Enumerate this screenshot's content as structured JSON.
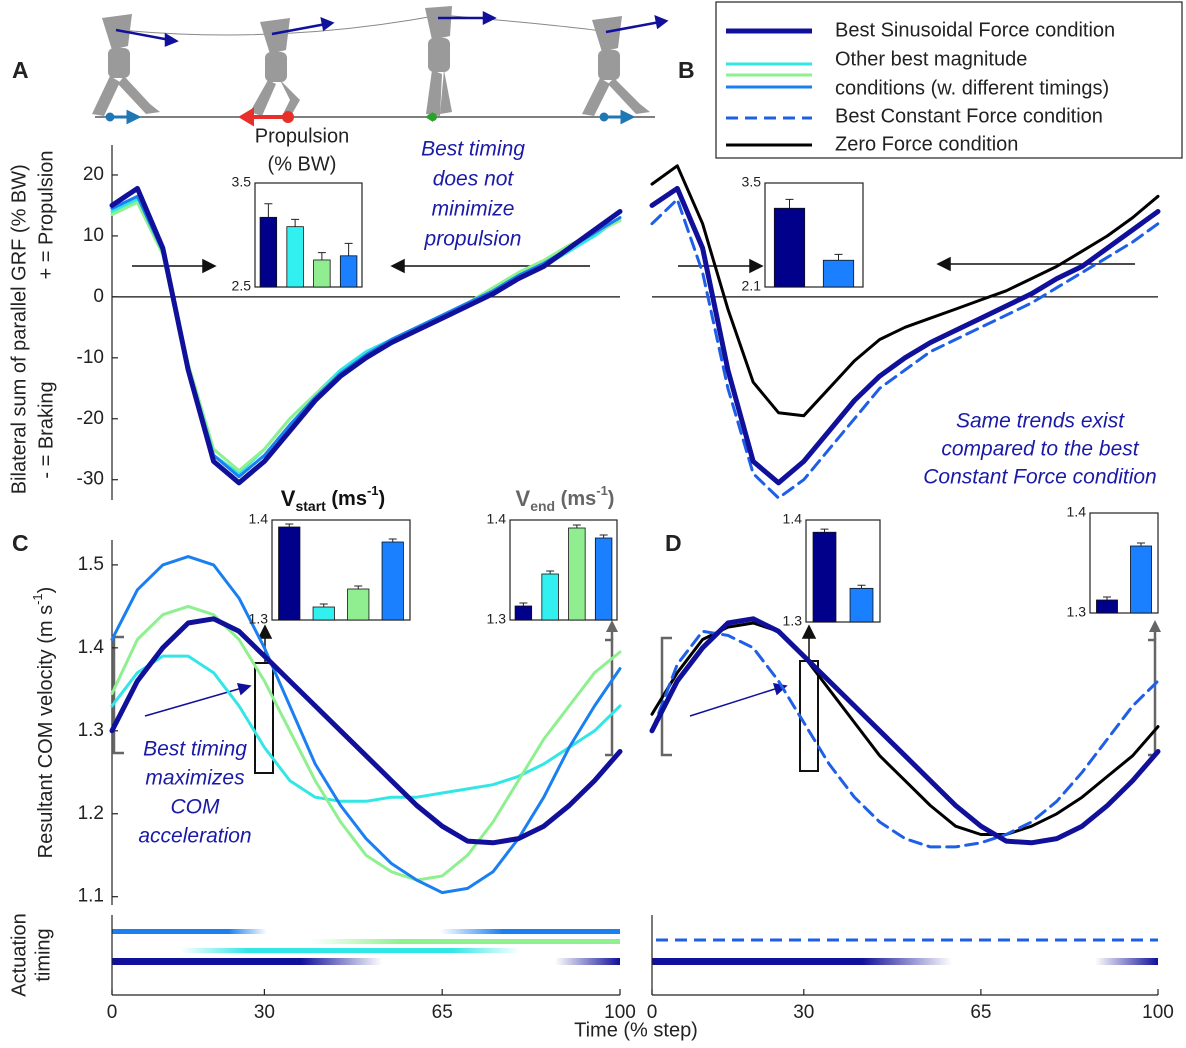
{
  "x_label": "Time (% step)",
  "timing_label": [
    "Actuation",
    "timing"
  ],
  "legend": [
    {
      "lines": [
        "Best Sinusoidal Force condition"
      ],
      "colors": [
        "#10109a"
      ],
      "dashed": false
    },
    {
      "lines": [
        "Other best magnitude",
        "conditions (w. different timings)"
      ],
      "colors": [
        "#33e6e6",
        "#8ef08e",
        "#1a7ff0"
      ],
      "dashed": false
    },
    {
      "lines": [
        "Best Constant Force condition"
      ],
      "colors": [
        "#1f5fe8"
      ],
      "dashed": true
    },
    {
      "lines": [
        "Zero Force condition"
      ],
      "colors": [
        "#000000"
      ],
      "dashed": false
    }
  ],
  "chart_data": [
    {
      "type": "line",
      "panel_label": "A",
      "ylabel": "Bilateral sum of parallel GRF (% BW)",
      "ylabel_sides": [
        "+ = Propulsion",
        "- = Braking"
      ],
      "xlim": [
        0,
        100
      ],
      "ylim": [
        -33,
        25
      ],
      "yticks": [
        -30,
        -20,
        -10,
        0,
        10,
        20
      ],
      "zero_line": true,
      "x": [
        0,
        5,
        10,
        15,
        20,
        25,
        30,
        35,
        40,
        45,
        50,
        55,
        60,
        65,
        70,
        75,
        80,
        85,
        90,
        95,
        100
      ],
      "series": [
        {
          "color": "#33e6e6",
          "dashed": false,
          "values": [
            14,
            16,
            7,
            -12,
            -26,
            -29,
            -25,
            -20,
            -16,
            -12,
            -9,
            -7,
            -5,
            -3,
            -1,
            1,
            3,
            5,
            7.5,
            10,
            13
          ]
        },
        {
          "color": "#8ef08e",
          "dashed": false,
          "values": [
            13.5,
            15.5,
            7,
            -11,
            -25,
            -28.5,
            -25,
            -20,
            -16,
            -12.5,
            -9.5,
            -7,
            -5,
            -3,
            -1,
            1.5,
            4,
            6,
            8.5,
            10.5,
            12.5
          ]
        },
        {
          "color": "#1a7ff0",
          "dashed": false,
          "values": [
            14.5,
            16.5,
            7.5,
            -11.5,
            -26,
            -29.5,
            -26,
            -21,
            -16.5,
            -12.5,
            -9.5,
            -7,
            -5,
            -3,
            -1,
            1,
            3.5,
            5.5,
            8,
            10.5,
            13
          ]
        },
        {
          "color": "#10109a",
          "dashed": false,
          "values": [
            15,
            17.8,
            8,
            -12,
            -27,
            -30.5,
            -27,
            -22,
            -17,
            -13,
            -10,
            -7.5,
            -5.5,
            -3.5,
            -1.5,
            0.5,
            3,
            5,
            8,
            11,
            14
          ]
        }
      ],
      "annotation": [
        "Best timing",
        "does not",
        "minimize",
        "propulsion"
      ],
      "insets": [
        {
          "type": "bar",
          "title": [
            "Propulsion",
            "(% BW)"
          ],
          "title_color": "#2b8ac4",
          "ylim": [
            2.5,
            3.5
          ],
          "yticks": [
            2.5,
            3.5
          ],
          "values": [
            3.17,
            3.08,
            2.76,
            2.8
          ],
          "errors": [
            0.13,
            0.07,
            0.07,
            0.12
          ],
          "colors": [
            "#00008b",
            "#33f0f0",
            "#90ee90",
            "#1a80ff"
          ]
        }
      ]
    },
    {
      "type": "line",
      "panel_label": "B",
      "xlim": [
        0,
        100
      ],
      "ylim": [
        -33,
        25
      ],
      "zero_line": true,
      "x": [
        0,
        5,
        10,
        15,
        20,
        25,
        30,
        35,
        40,
        45,
        50,
        55,
        60,
        65,
        70,
        75,
        80,
        85,
        90,
        95,
        100
      ],
      "series": [
        {
          "color": "#000000",
          "dashed": false,
          "values": [
            18.5,
            21.5,
            12,
            -2,
            -14,
            -19,
            -19.5,
            -15,
            -10.5,
            -7,
            -5,
            -3.5,
            -2,
            -0.5,
            1,
            3,
            5,
            7.5,
            10,
            13,
            16.5
          ]
        },
        {
          "color": "#1f5fe8",
          "dashed": true,
          "values": [
            12,
            16,
            4,
            -15,
            -29,
            -33,
            -30,
            -25,
            -20,
            -15,
            -12,
            -9,
            -7,
            -5,
            -3,
            -1,
            1.5,
            4,
            6.5,
            9,
            12
          ]
        },
        {
          "color": "#10109a",
          "dashed": false,
          "values": [
            15,
            17.8,
            8,
            -12,
            -27,
            -30.5,
            -27,
            -22,
            -17,
            -13,
            -10,
            -7.5,
            -5.5,
            -3.5,
            -1.5,
            0.5,
            3,
            5,
            8,
            11,
            14
          ]
        }
      ],
      "annotation": [
        "Same trends exist",
        "compared to the best",
        "Constant Force condition"
      ],
      "insets": [
        {
          "type": "bar",
          "ylim": [
            2.1,
            3.5
          ],
          "yticks": [
            2.1,
            3.5
          ],
          "values": [
            3.16,
            2.46
          ],
          "errors": [
            0.12,
            0.08
          ],
          "colors": [
            "#00008b",
            "#1a80ff"
          ]
        }
      ]
    },
    {
      "type": "line",
      "panel_label": "C",
      "ylabel_parts": [
        "Resultant COM velocity (m s",
        "-1",
        ")"
      ],
      "xlim": [
        0,
        100
      ],
      "ylim": [
        1.09,
        1.53
      ],
      "yticks": [
        1.1,
        1.2,
        1.3,
        1.4,
        1.5
      ],
      "xticks": [
        0,
        30,
        65,
        100
      ],
      "x": [
        0,
        5,
        10,
        15,
        20,
        25,
        30,
        35,
        40,
        45,
        50,
        55,
        60,
        65,
        70,
        75,
        80,
        85,
        90,
        95,
        100
      ],
      "series": [
        {
          "color": "#33e6e6",
          "dashed": false,
          "values": [
            1.33,
            1.37,
            1.39,
            1.39,
            1.37,
            1.33,
            1.28,
            1.24,
            1.22,
            1.215,
            1.215,
            1.22,
            1.22,
            1.225,
            1.23,
            1.235,
            1.245,
            1.26,
            1.28,
            1.3,
            1.33
          ]
        },
        {
          "color": "#8ef08e",
          "dashed": false,
          "values": [
            1.345,
            1.41,
            1.44,
            1.45,
            1.44,
            1.41,
            1.36,
            1.3,
            1.24,
            1.19,
            1.15,
            1.13,
            1.12,
            1.125,
            1.15,
            1.19,
            1.24,
            1.29,
            1.33,
            1.37,
            1.395
          ]
        },
        {
          "color": "#1a7ff0",
          "dashed": false,
          "values": [
            1.41,
            1.47,
            1.5,
            1.51,
            1.5,
            1.46,
            1.4,
            1.33,
            1.26,
            1.21,
            1.17,
            1.14,
            1.12,
            1.105,
            1.11,
            1.13,
            1.17,
            1.22,
            1.28,
            1.33,
            1.375
          ]
        },
        {
          "color": "#10109a",
          "dashed": false,
          "values": [
            1.3,
            1.36,
            1.4,
            1.43,
            1.435,
            1.42,
            1.39,
            1.36,
            1.33,
            1.3,
            1.27,
            1.24,
            1.21,
            1.185,
            1.167,
            1.165,
            1.17,
            1.185,
            1.21,
            1.24,
            1.275
          ]
        }
      ],
      "annotation": [
        "Best timing",
        "maximizes",
        "COM",
        "acceleration"
      ],
      "insets": [
        {
          "type": "bar",
          "title_parts": [
            "V",
            "start",
            " (ms",
            "-1",
            ")"
          ],
          "title_color": "#111111",
          "ylim": [
            1.3,
            1.4
          ],
          "yticks": [
            1.3,
            1.4
          ],
          "values": [
            1.393,
            1.313,
            1.331,
            1.378
          ],
          "errors": [
            0.003,
            0.003,
            0.003,
            0.003
          ],
          "colors": [
            "#00008b",
            "#33f0f0",
            "#90ee90",
            "#1a80ff"
          ]
        },
        {
          "type": "bar",
          "title_parts": [
            "V",
            "end",
            " (ms",
            "-1",
            ")"
          ],
          "title_color": "#666666",
          "ylim": [
            1.3,
            1.4
          ],
          "yticks": [
            1.3,
            1.4
          ],
          "values": [
            1.314,
            1.346,
            1.392,
            1.382
          ],
          "errors": [
            0.003,
            0.003,
            0.003,
            0.003
          ],
          "colors": [
            "#00008b",
            "#33f0f0",
            "#90ee90",
            "#1a80ff"
          ]
        }
      ]
    },
    {
      "type": "line",
      "panel_label": "D",
      "xlim": [
        0,
        100
      ],
      "ylim": [
        1.09,
        1.53
      ],
      "xticks": [
        0,
        30,
        65,
        100
      ],
      "x": [
        0,
        5,
        10,
        15,
        20,
        25,
        30,
        35,
        40,
        45,
        50,
        55,
        60,
        65,
        70,
        75,
        80,
        85,
        90,
        95,
        100
      ],
      "series": [
        {
          "color": "#000000",
          "dashed": false,
          "values": [
            1.32,
            1.37,
            1.41,
            1.425,
            1.43,
            1.42,
            1.39,
            1.35,
            1.31,
            1.27,
            1.24,
            1.21,
            1.185,
            1.175,
            1.175,
            1.185,
            1.2,
            1.22,
            1.245,
            1.27,
            1.305
          ]
        },
        {
          "color": "#1f5fe8",
          "dashed": true,
          "values": [
            1.3,
            1.38,
            1.42,
            1.415,
            1.4,
            1.36,
            1.31,
            1.26,
            1.22,
            1.19,
            1.17,
            1.16,
            1.16,
            1.165,
            1.175,
            1.19,
            1.215,
            1.25,
            1.29,
            1.33,
            1.36
          ]
        },
        {
          "color": "#10109a",
          "dashed": false,
          "values": [
            1.3,
            1.36,
            1.4,
            1.43,
            1.435,
            1.42,
            1.39,
            1.36,
            1.33,
            1.3,
            1.27,
            1.24,
            1.21,
            1.185,
            1.167,
            1.165,
            1.17,
            1.185,
            1.21,
            1.24,
            1.275
          ]
        }
      ],
      "insets": [
        {
          "type": "bar",
          "ylim": [
            1.3,
            1.4
          ],
          "yticks": [
            1.3,
            1.4
          ],
          "values": [
            1.388,
            1.333
          ],
          "errors": [
            0.003,
            0.003
          ],
          "colors": [
            "#00008b",
            "#1a80ff"
          ]
        },
        {
          "type": "bar",
          "ylim": [
            1.3,
            1.4
          ],
          "yticks": [
            1.3,
            1.4
          ],
          "values": [
            1.313,
            1.367
          ],
          "errors": [
            0.003,
            0.003
          ],
          "colors": [
            "#00008b",
            "#1a80ff"
          ]
        }
      ]
    }
  ]
}
